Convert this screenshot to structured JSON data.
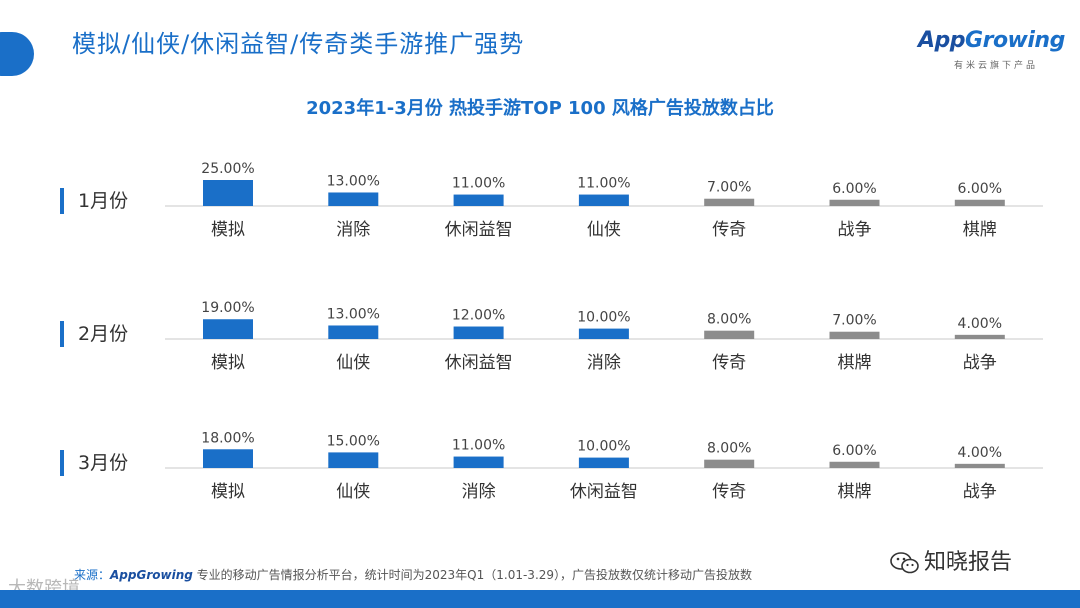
{
  "header": {
    "title": "模拟/仙侠/休闲益智/传奇类手游推广强势"
  },
  "logo": {
    "word_prefix": "App",
    "word_suffix": "Growing",
    "tagline": "有米云旗下产品"
  },
  "chart_data": {
    "type": "bar",
    "title": "2023年1-3月份 热投手游TOP 100 风格广告投放数占比",
    "value_suffix": "%",
    "highlight_count": 4,
    "colors": {
      "highlight": "#1a6fc8",
      "other": "#8c8c8c"
    },
    "ylim": [
      0,
      25
    ],
    "panels": [
      {
        "label": "1月份",
        "categories": [
          "模拟",
          "消除",
          "休闲益智",
          "仙侠",
          "传奇",
          "战争",
          "棋牌"
        ],
        "values": [
          25.0,
          13.0,
          11.0,
          11.0,
          7.0,
          6.0,
          6.0
        ]
      },
      {
        "label": "2月份",
        "categories": [
          "模拟",
          "仙侠",
          "休闲益智",
          "消除",
          "传奇",
          "棋牌",
          "战争"
        ],
        "values": [
          19.0,
          13.0,
          12.0,
          10.0,
          8.0,
          7.0,
          4.0
        ]
      },
      {
        "label": "3月份",
        "categories": [
          "模拟",
          "仙侠",
          "消除",
          "休闲益智",
          "传奇",
          "棋牌",
          "战争"
        ],
        "values": [
          18.0,
          15.0,
          11.0,
          10.0,
          8.0,
          6.0,
          4.0
        ]
      }
    ]
  },
  "source": {
    "label": "来源：",
    "brand": "AppGrowing",
    "text": " 专业的移动广告情报分析平台，统计时间为2023年Q1（1.01-3.29），广告投放数仅统计移动广告投放数"
  },
  "watermarks": {
    "wechat": "知晓报告",
    "corner": "大数跨境"
  }
}
